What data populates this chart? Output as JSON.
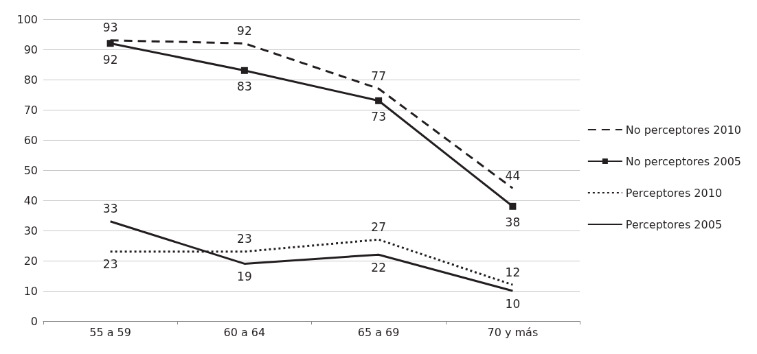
{
  "chart_data": {
    "type": "line",
    "categories": [
      "55 a 59",
      "60 a 64",
      "65 a 69",
      "70 y más"
    ],
    "series": [
      {
        "name": "No perceptores 2010",
        "color": "#231f20",
        "values": [
          93,
          92,
          77,
          44
        ],
        "line_style": "dashed",
        "marker": "none"
      },
      {
        "name": "No perceptores 2005",
        "color": "#231f20",
        "values": [
          92,
          83,
          73,
          38
        ],
        "line_style": "solid",
        "marker": "square"
      },
      {
        "name": "Perceptores 2010",
        "color": "#231f20",
        "values": [
          23,
          23,
          27,
          12
        ],
        "line_style": "dotted",
        "marker": "none"
      },
      {
        "name": "Perceptores 2005",
        "color": "#231f20",
        "values": [
          33,
          19,
          22,
          10
        ],
        "line_style": "solid",
        "marker": "none"
      }
    ],
    "ylim": [
      0,
      100
    ],
    "yticks": [
      0,
      10,
      20,
      30,
      40,
      50,
      60,
      70,
      80,
      90,
      100
    ],
    "grid": "y",
    "legend": "right",
    "data_labels": true
  }
}
